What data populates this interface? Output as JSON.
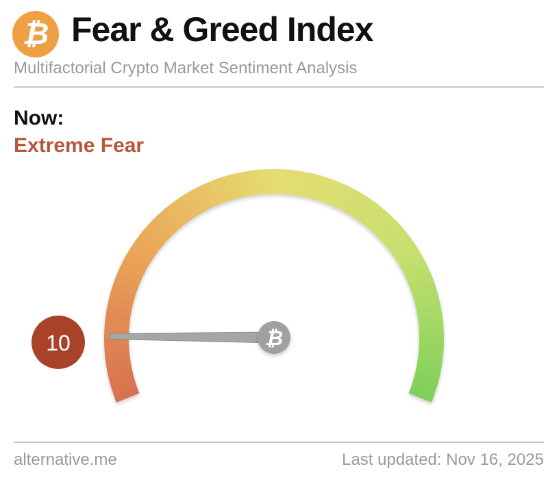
{
  "header": {
    "logo_icon": "bitcoin-icon",
    "title": "Fear & Greed Index",
    "subtitle": "Multifactorial Crypto Market Sentiment Analysis"
  },
  "current": {
    "label": "Now:",
    "classification": "Extreme Fear",
    "value": 10,
    "value_text": "10",
    "scale": [
      0,
      100
    ],
    "badge_color": "#a8432a",
    "classification_color": "#b5573b"
  },
  "gauge": {
    "colors": [
      "#d8704f",
      "#eaa658",
      "#e6dc72",
      "#c8e070",
      "#7fcf5a"
    ],
    "hub_icon": "bitcoin-icon"
  },
  "footer": {
    "source": "alternative.me",
    "updated": "Last updated: Nov 16, 2025"
  }
}
